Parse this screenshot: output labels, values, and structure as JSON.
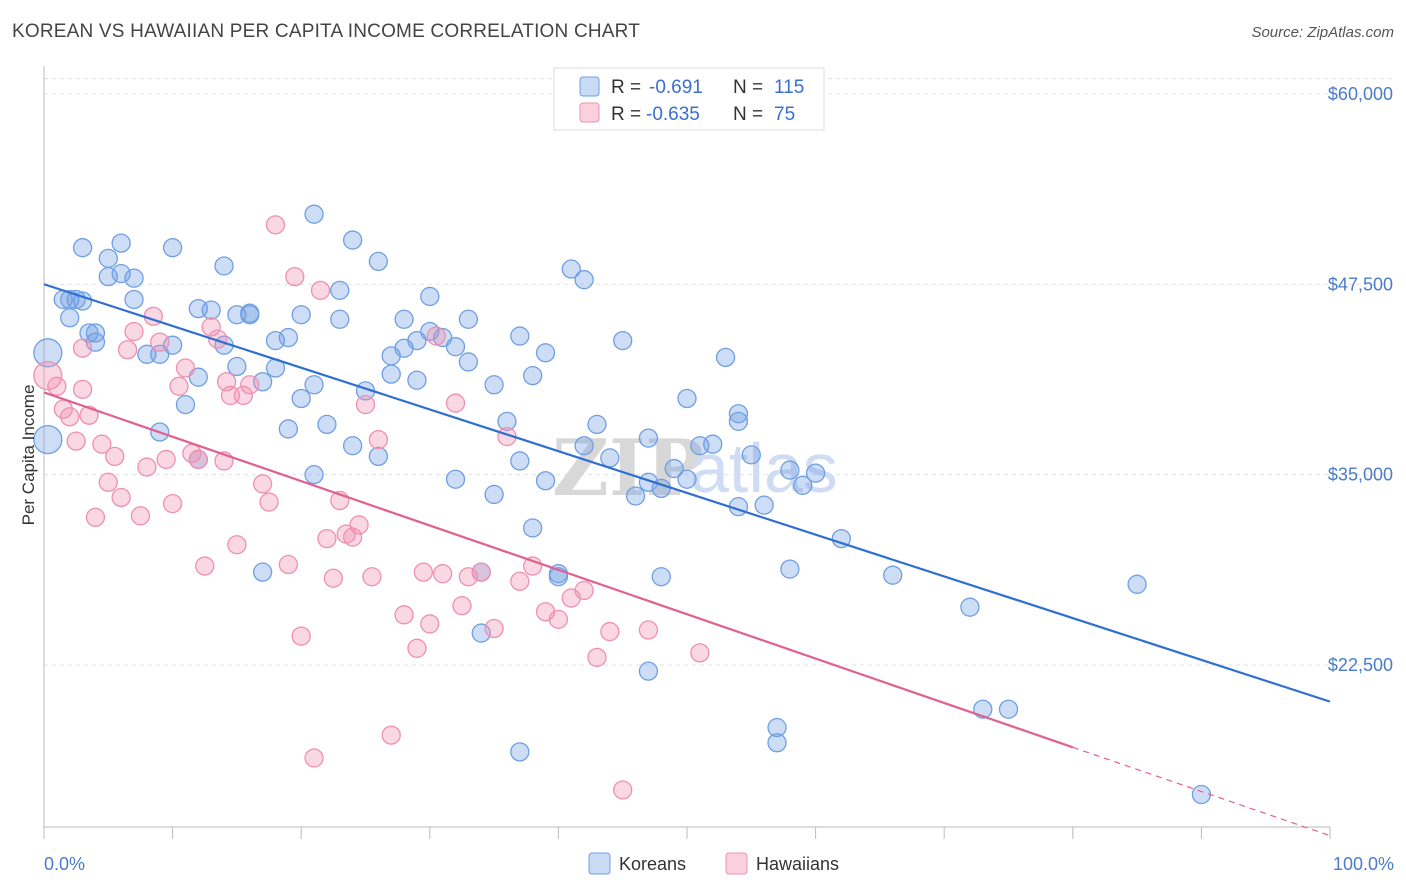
{
  "title": "KOREAN VS HAWAIIAN PER CAPITA INCOME CORRELATION CHART",
  "source": "Source: ZipAtlas.com",
  "watermark": {
    "zip": "ZIP",
    "atlas": "atlas"
  },
  "colors": {
    "korean": "#6f9fe3",
    "korean_line": "#2f6fd1",
    "hawaiian": "#f08fb0",
    "hawaiian_line": "#e06090",
    "tick_text": "#4a7cc9"
  },
  "chart_data": {
    "type": "scatter",
    "title": "KOREAN VS HAWAIIAN PER CAPITA INCOME CORRELATION CHART",
    "xlabel": "",
    "ylabel": "Per Capita Income",
    "xlim": [
      0,
      100
    ],
    "ylim": [
      12000,
      61500
    ],
    "x_tick_labels": [
      "0.0%",
      "100.0%"
    ],
    "y_ticks": [
      22500,
      35000,
      47500,
      60000
    ],
    "y_tick_labels": [
      "$22,500",
      "$35,000",
      "$47,500",
      "$60,000"
    ],
    "grid": true,
    "legend_position": "top-center",
    "legend": [
      {
        "name": "Koreans",
        "r_label": "R =",
        "r": "-0.691",
        "n_label": "N =",
        "n": "115"
      },
      {
        "name": "Hawaiians",
        "r_label": "R =",
        "r": "-0.635",
        "n_label": "N =",
        "n": "75"
      }
    ],
    "series": [
      {
        "name": "Koreans",
        "trend": {
          "x0": 0,
          "y0": 47500,
          "x1": 100,
          "y1": 20100
        },
        "points": [
          [
            0.3,
            43000
          ],
          [
            0.3,
            37300
          ],
          [
            2,
            46500
          ],
          [
            2,
            45300
          ],
          [
            3,
            46400
          ],
          [
            3,
            49900
          ],
          [
            4,
            43700
          ],
          [
            4,
            44300
          ],
          [
            5,
            48000
          ],
          [
            5,
            49200
          ],
          [
            6,
            48200
          ],
          [
            6,
            50200
          ],
          [
            7,
            46500
          ],
          [
            7,
            47900
          ],
          [
            8,
            42900
          ],
          [
            9,
            42900
          ],
          [
            9,
            37800
          ],
          [
            10,
            49900
          ],
          [
            10,
            43500
          ],
          [
            11,
            39600
          ],
          [
            12,
            45900
          ],
          [
            12,
            36000
          ],
          [
            12,
            41400
          ],
          [
            13,
            45800
          ],
          [
            14,
            43500
          ],
          [
            14,
            48700
          ],
          [
            15,
            45500
          ],
          [
            15,
            42100
          ],
          [
            16,
            45500
          ],
          [
            16,
            45600
          ],
          [
            17,
            41100
          ],
          [
            17,
            28600
          ],
          [
            18,
            43800
          ],
          [
            18,
            42000
          ],
          [
            19,
            44000
          ],
          [
            19,
            38000
          ],
          [
            20,
            45500
          ],
          [
            20,
            40000
          ],
          [
            21,
            35000
          ],
          [
            21,
            40900
          ],
          [
            21,
            52100
          ],
          [
            22,
            38300
          ],
          [
            23,
            47100
          ],
          [
            23,
            45200
          ],
          [
            24,
            36900
          ],
          [
            24,
            50400
          ],
          [
            25,
            40500
          ],
          [
            26,
            36200
          ],
          [
            26,
            49000
          ],
          [
            27,
            42800
          ],
          [
            27,
            41600
          ],
          [
            28,
            45200
          ],
          [
            28,
            43300
          ],
          [
            29,
            41200
          ],
          [
            29,
            43800
          ],
          [
            30,
            46700
          ],
          [
            30,
            44400
          ],
          [
            31,
            44000
          ],
          [
            32,
            43400
          ],
          [
            32,
            34700
          ],
          [
            33,
            45200
          ],
          [
            33,
            42400
          ],
          [
            34,
            28600
          ],
          [
            34,
            24600
          ],
          [
            35,
            40900
          ],
          [
            35,
            33700
          ],
          [
            36,
            38500
          ],
          [
            37,
            44100
          ],
          [
            37,
            35900
          ],
          [
            37,
            16800
          ],
          [
            38,
            41500
          ],
          [
            38,
            31500
          ],
          [
            39,
            43000
          ],
          [
            39,
            34600
          ],
          [
            40,
            28300
          ],
          [
            40,
            28500
          ],
          [
            41,
            48500
          ],
          [
            42,
            47800
          ],
          [
            42,
            36900
          ],
          [
            43,
            38300
          ],
          [
            44,
            36100
          ],
          [
            45,
            43800
          ],
          [
            46,
            33600
          ],
          [
            47,
            37400
          ],
          [
            47,
            34500
          ],
          [
            47,
            22100
          ],
          [
            48,
            34100
          ],
          [
            48,
            28300
          ],
          [
            49,
            35400
          ],
          [
            50,
            34700
          ],
          [
            50,
            40000
          ],
          [
            51,
            36900
          ],
          [
            52,
            37000
          ],
          [
            53,
            42700
          ],
          [
            54,
            38500
          ],
          [
            54,
            32900
          ],
          [
            54,
            39000
          ],
          [
            55,
            36300
          ],
          [
            56,
            33000
          ],
          [
            57,
            17400
          ],
          [
            57,
            18400
          ],
          [
            58,
            28800
          ],
          [
            58,
            35300
          ],
          [
            59,
            34300
          ],
          [
            60,
            35100
          ],
          [
            62,
            30800
          ],
          [
            66,
            28400
          ],
          [
            72,
            26300
          ],
          [
            73,
            19600
          ],
          [
            75,
            19600
          ],
          [
            85,
            27800
          ],
          [
            90,
            14000
          ],
          [
            2.5,
            46500
          ],
          [
            1.5,
            46500
          ],
          [
            3.5,
            44300
          ]
        ]
      },
      {
        "name": "Hawaiians",
        "trend": {
          "x0": 0,
          "y0": 40400,
          "x1": 80,
          "y1": 17100,
          "dash_to_x": 100,
          "dash_to_y": 11300
        },
        "points": [
          [
            0.3,
            41500
          ],
          [
            1,
            40800
          ],
          [
            1.5,
            39300
          ],
          [
            2,
            38800
          ],
          [
            2.5,
            37200
          ],
          [
            3,
            43300
          ],
          [
            3,
            40600
          ],
          [
            3.5,
            38900
          ],
          [
            4,
            32200
          ],
          [
            4.5,
            37000
          ],
          [
            5,
            34500
          ],
          [
            5.5,
            36200
          ],
          [
            6,
            33500
          ],
          [
            6.5,
            43200
          ],
          [
            7,
            44400
          ],
          [
            7.5,
            32300
          ],
          [
            8,
            35500
          ],
          [
            8.5,
            45400
          ],
          [
            9,
            43700
          ],
          [
            9.5,
            36000
          ],
          [
            10,
            33100
          ],
          [
            10.5,
            40800
          ],
          [
            11,
            42000
          ],
          [
            11.5,
            36400
          ],
          [
            12,
            36000
          ],
          [
            12.5,
            29000
          ],
          [
            13,
            44700
          ],
          [
            13.5,
            43900
          ],
          [
            14,
            35900
          ],
          [
            14.5,
            40200
          ],
          [
            15,
            30400
          ],
          [
            15.5,
            40200
          ],
          [
            16,
            40900
          ],
          [
            17,
            34400
          ],
          [
            17.5,
            33200
          ],
          [
            18,
            51400
          ],
          [
            19,
            29100
          ],
          [
            19.5,
            48000
          ],
          [
            20,
            24400
          ],
          [
            21,
            16400
          ],
          [
            21.5,
            47100
          ],
          [
            22,
            30800
          ],
          [
            22.5,
            28200
          ],
          [
            23,
            33300
          ],
          [
            23.5,
            31100
          ],
          [
            24,
            30900
          ],
          [
            24.5,
            31700
          ],
          [
            25,
            39600
          ],
          [
            25.5,
            28300
          ],
          [
            26,
            37300
          ],
          [
            27,
            17900
          ],
          [
            28,
            25800
          ],
          [
            29,
            23600
          ],
          [
            29.5,
            28600
          ],
          [
            30,
            25200
          ],
          [
            31,
            28500
          ],
          [
            32,
            39700
          ],
          [
            32.5,
            26400
          ],
          [
            33,
            28300
          ],
          [
            34,
            28600
          ],
          [
            35,
            24900
          ],
          [
            36,
            37500
          ],
          [
            37,
            28000
          ],
          [
            38,
            29000
          ],
          [
            39,
            26000
          ],
          [
            40,
            25500
          ],
          [
            41,
            26900
          ],
          [
            42,
            27400
          ],
          [
            43,
            23000
          ],
          [
            44,
            24700
          ],
          [
            45,
            14300
          ],
          [
            47,
            24800
          ],
          [
            51,
            23300
          ],
          [
            30.5,
            44100
          ],
          [
            14.2,
            41100
          ]
        ]
      }
    ]
  }
}
